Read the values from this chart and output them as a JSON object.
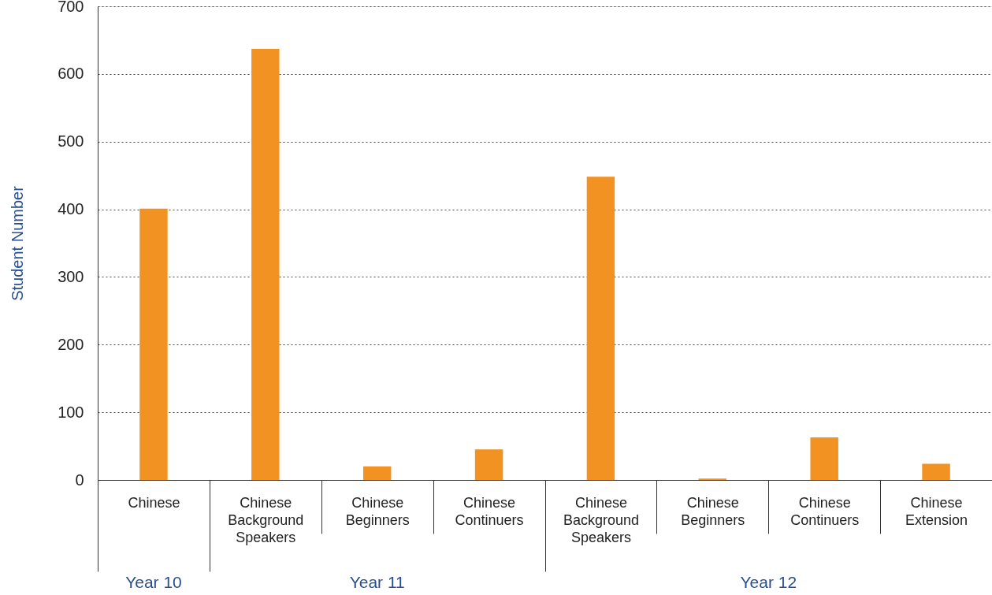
{
  "chart_data": {
    "type": "bar",
    "ylabel": "Student Number",
    "categories": [
      "Chinese",
      "Chinese Background Speakers",
      "Chinese Beginners",
      "Chinese Continuers",
      "Chinese Background Speakers",
      "Chinese Beginners",
      "Chinese Continuers",
      "Chinese Extension"
    ],
    "values": [
      401,
      637,
      20,
      45,
      448,
      2,
      63,
      24
    ],
    "color": "#f29222",
    "ylim": [
      0,
      700
    ],
    "yticks": [
      0,
      100,
      200,
      300,
      400,
      500,
      600,
      700
    ],
    "grid": "y",
    "annotations": [
      "Year 10",
      "Year 11",
      "Year 12"
    ]
  }
}
